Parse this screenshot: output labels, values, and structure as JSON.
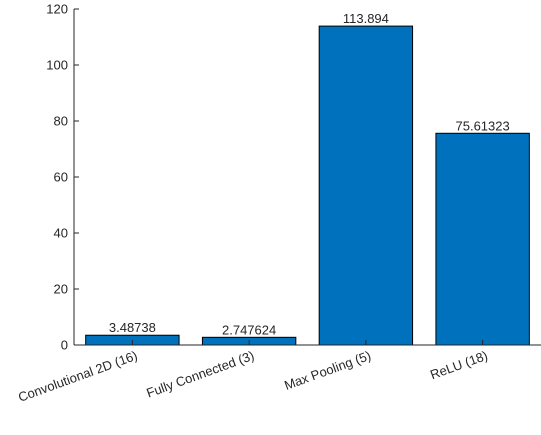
{
  "chart_data": {
    "type": "bar",
    "categories": [
      "Convolutional 2D (16)",
      "Fully Connected (3)",
      "Max Pooling (5)",
      "ReLU (18)"
    ],
    "values": [
      3.48738,
      2.747624,
      113.894,
      75.61323
    ],
    "data_labels": [
      "3.48738",
      "2.747624",
      "113.894",
      "75.61323"
    ],
    "title": "",
    "xlabel": "",
    "ylabel": "",
    "ylim": [
      0,
      120
    ],
    "yticks": [
      0,
      20,
      40,
      60,
      80,
      100,
      120
    ],
    "grid": false,
    "bar_color": "#0072BD",
    "bar_edge_color": "#000000"
  }
}
